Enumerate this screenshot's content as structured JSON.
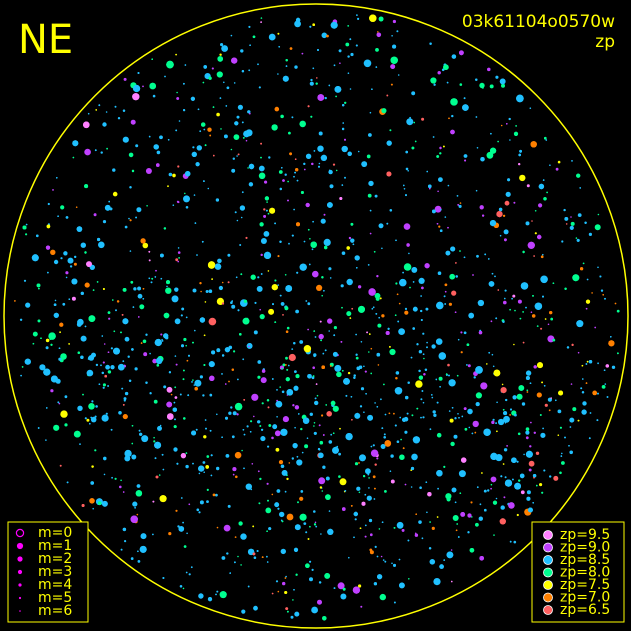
{
  "header": {
    "direction": "NE",
    "frame_id": "03k61104o0570w",
    "color_by": "zp"
  },
  "magnitude_legend": [
    {
      "label": "m=0"
    },
    {
      "label": "m=1"
    },
    {
      "label": "m=2"
    },
    {
      "label": "m=3"
    },
    {
      "label": "m=4"
    },
    {
      "label": "m=5"
    },
    {
      "label": "m=6"
    }
  ],
  "zp_legend": [
    {
      "label": "zp=9.5",
      "color": "#ff80ff"
    },
    {
      "label": "zp=9.0",
      "color": "#c040ff"
    },
    {
      "label": "zp=8.5",
      "color": "#20c0ff"
    },
    {
      "label": "zp=8.0",
      "color": "#00ff90"
    },
    {
      "label": "zp=7.5",
      "color": "#ffff00"
    },
    {
      "label": "zp=7.0",
      "color": "#ff8000"
    },
    {
      "label": "zp=6.5",
      "color": "#ff6060"
    }
  ],
  "symbol_color": "#ff00ff",
  "frame_color": "#ffff00"
}
